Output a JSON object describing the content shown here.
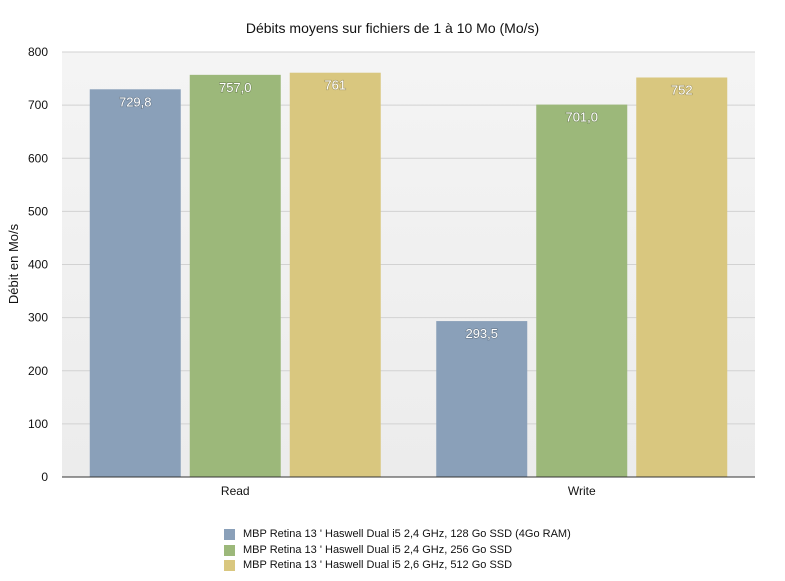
{
  "chart_data": {
    "type": "bar",
    "title": "Débits moyens sur fichiers de 1 à 10 Mo (Mo/s)",
    "xlabel": "",
    "ylabel": "Débit en Mo/s",
    "ylim": [
      0,
      800
    ],
    "yticks": [
      0,
      100,
      200,
      300,
      400,
      500,
      600,
      700,
      800
    ],
    "grid": true,
    "legend_position": "bottom",
    "categories": [
      "Read",
      "Write"
    ],
    "series": [
      {
        "name": "MBP Retina 13 ' Haswell Dual i5 2,4 GHz, 128 Go SSD (4Go RAM)",
        "color": "#8aa0b9",
        "values": [
          729.8,
          293.5
        ],
        "labels": [
          "729,8",
          "293,5"
        ]
      },
      {
        "name": "MBP Retina 13 ' Haswell Dual i5 2,4 GHz, 256 Go SSD",
        "color": "#9cb87a",
        "values": [
          757.0,
          701.0
        ],
        "labels": [
          "757,0",
          "701,0"
        ]
      },
      {
        "name": "MBP Retina 13 ' Haswell Dual i5 2,6 GHz, 512 Go SSD",
        "color": "#d9c77f",
        "values": [
          761,
          752
        ],
        "labels": [
          "761",
          "752"
        ]
      }
    ]
  }
}
